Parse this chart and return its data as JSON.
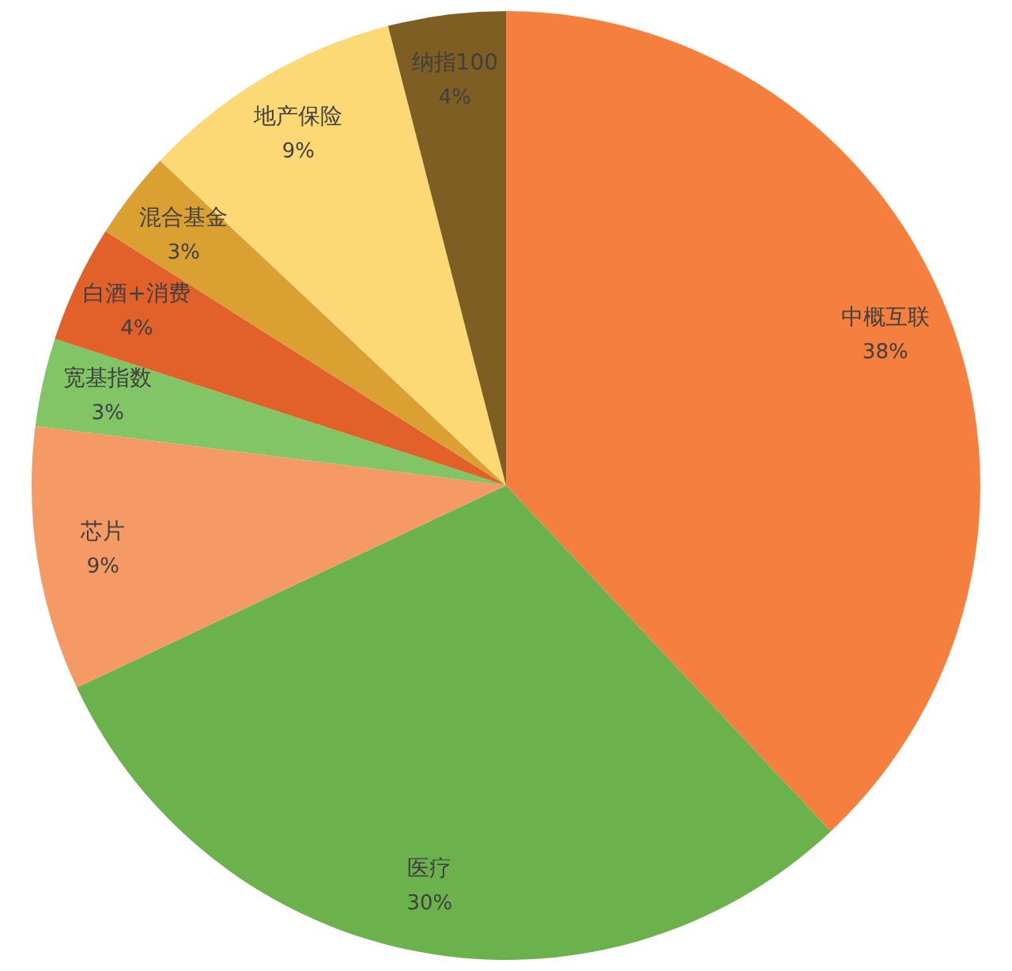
{
  "chart_data": {
    "type": "pie",
    "categories": [
      "中概互联",
      "医疗",
      "芯片",
      "宽基指数",
      "白酒+消费",
      "混合基金",
      "地产保险",
      "纳指100"
    ],
    "values": [
      38,
      30,
      9,
      3,
      4,
      3,
      9,
      4
    ],
    "colors": [
      "#f47f3e",
      "#6cb24c",
      "#f59a65",
      "#82c566",
      "#e2602a",
      "#daa032",
      "#fcd975",
      "#7f5e24"
    ],
    "value_labels": [
      "38%",
      "30%",
      "9%",
      "3%",
      "4%",
      "3%",
      "9%",
      "4%"
    ]
  }
}
